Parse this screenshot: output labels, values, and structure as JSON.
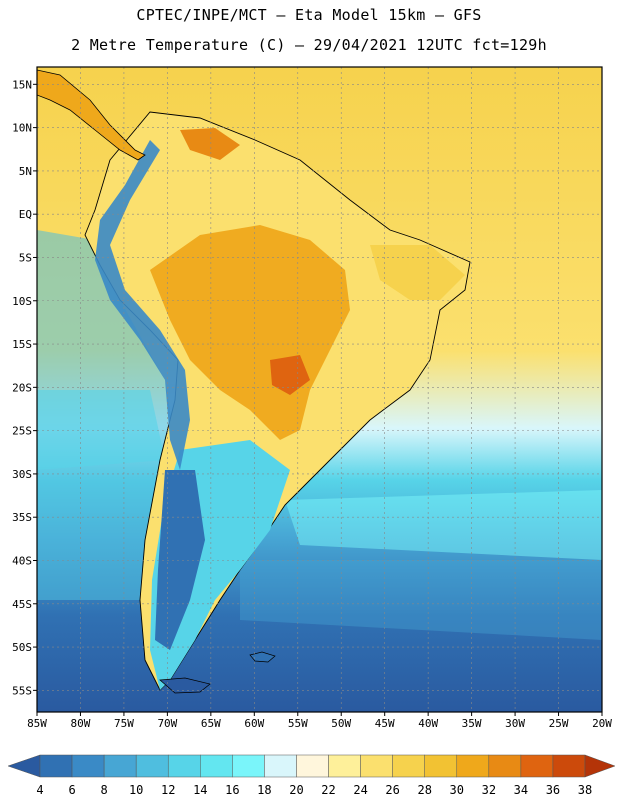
{
  "title": {
    "line1": "CPTEC/INPE/MCT –  Eta Model 15km – GFS",
    "line2": "2 Metre Temperature (C) – 29/04/2021 12UTC fct=129h"
  },
  "axes": {
    "lat_ticks": [
      "15N",
      "10N",
      "5N",
      "EQ",
      "5S",
      "10S",
      "15S",
      "20S",
      "25S",
      "30S",
      "35S",
      "40S",
      "45S",
      "50S",
      "55S"
    ],
    "lat_values": [
      15,
      10,
      5,
      0,
      -5,
      -10,
      -15,
      -20,
      -25,
      -30,
      -35,
      -40,
      -45,
      -50,
      -55
    ],
    "lon_ticks": [
      "85W",
      "80W",
      "75W",
      "70W",
      "65W",
      "60W",
      "55W",
      "50W",
      "45W",
      "40W",
      "35W",
      "30W",
      "25W",
      "20W"
    ],
    "lon_values": [
      -85,
      -80,
      -75,
      -70,
      -65,
      -60,
      -55,
      -50,
      -45,
      -40,
      -35,
      -30,
      -25,
      -20
    ],
    "lat_range": [
      -57.5,
      17.0
    ],
    "lon_range": [
      -85.0,
      -20.0
    ]
  },
  "colorbar": {
    "levels": [
      "4",
      "6",
      "8",
      "10",
      "12",
      "14",
      "16",
      "18",
      "20",
      "22",
      "24",
      "26",
      "28",
      "30",
      "32",
      "34",
      "36",
      "38"
    ],
    "colors": [
      "#2a5aa0",
      "#3071b3",
      "#3a8ac6",
      "#47a6d4",
      "#4fbedf",
      "#57d4e8",
      "#63e6f0",
      "#7af5fa",
      "#d9f6fb",
      "#fff6dc",
      "#fef09a",
      "#fbe06e",
      "#f6d24d",
      "#f2c233",
      "#efa81b",
      "#e88a14",
      "#df6410",
      "#cc4a0b",
      "#b43408"
    ]
  },
  "regions": {
    "ocean_tropical_color": "#f6d24d",
    "continent_hot_color": "#efa81b",
    "andes_cold_color": "#3a8ac6"
  }
}
